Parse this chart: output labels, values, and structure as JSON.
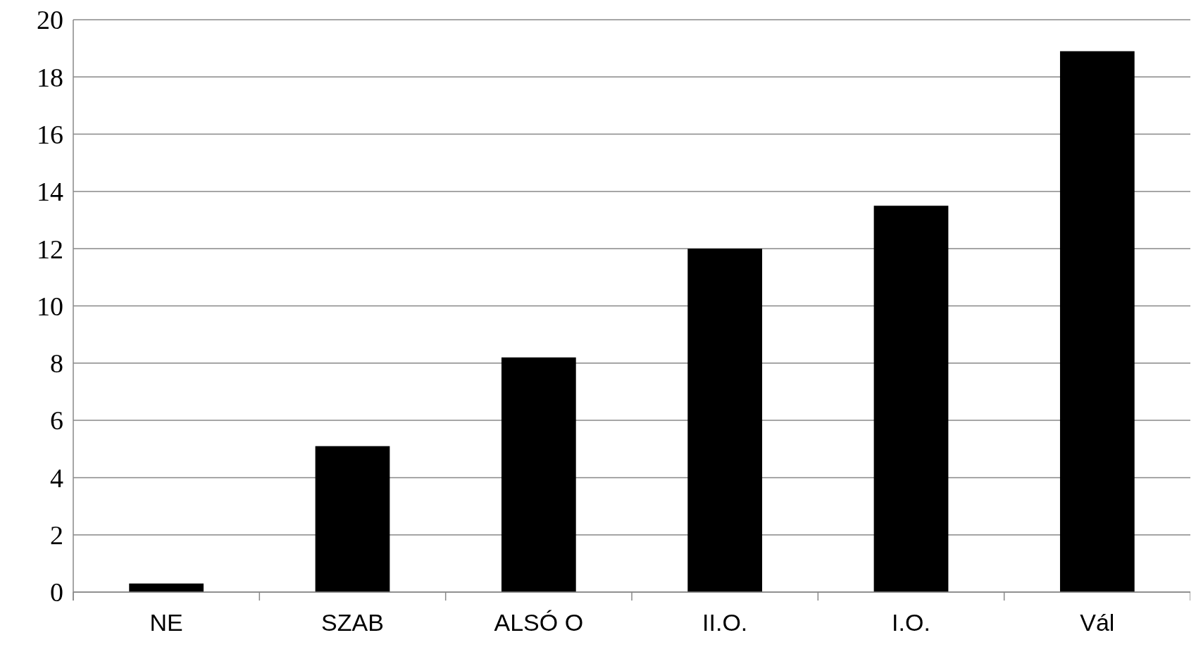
{
  "chart_data": {
    "type": "bar",
    "categories": [
      "NE",
      "SZAB",
      "ALSÓ O",
      "II.O.",
      "I.O.",
      "Vál"
    ],
    "values": [
      0.3,
      5.1,
      8.2,
      12.0,
      13.5,
      18.9
    ],
    "color": "#000000",
    "ylim": [
      0,
      20
    ],
    "yticks": [
      0,
      2,
      4,
      6,
      8,
      10,
      12,
      14,
      16,
      18,
      20
    ],
    "grid": "y"
  }
}
